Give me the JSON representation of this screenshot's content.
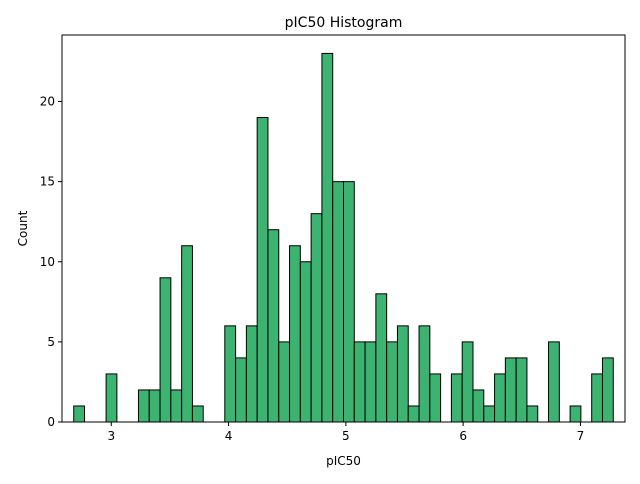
{
  "chart_data": {
    "type": "bar",
    "title": "pIC50 Histogram",
    "xlabel": "pIC50",
    "ylabel": "Count",
    "bar_color": "#3cb371",
    "edge_color": "#000000",
    "xlim": [
      2.58,
      7.38
    ],
    "ylim": [
      0,
      24.15
    ],
    "xticks": [
      3,
      4,
      5,
      6,
      7
    ],
    "yticks": [
      0,
      5,
      10,
      15,
      20
    ],
    "grid": false,
    "bin_start": 2.68,
    "bin_width": 0.092,
    "values": [
      1,
      0,
      0,
      3,
      0,
      0,
      2,
      2,
      9,
      2,
      11,
      1,
      0,
      0,
      6,
      4,
      6,
      19,
      12,
      5,
      11,
      10,
      13,
      23,
      15,
      15,
      5,
      5,
      8,
      5,
      6,
      1,
      6,
      3,
      0,
      3,
      5,
      2,
      1,
      3,
      4,
      4,
      1,
      0,
      5,
      0,
      1,
      0,
      3,
      4
    ]
  }
}
